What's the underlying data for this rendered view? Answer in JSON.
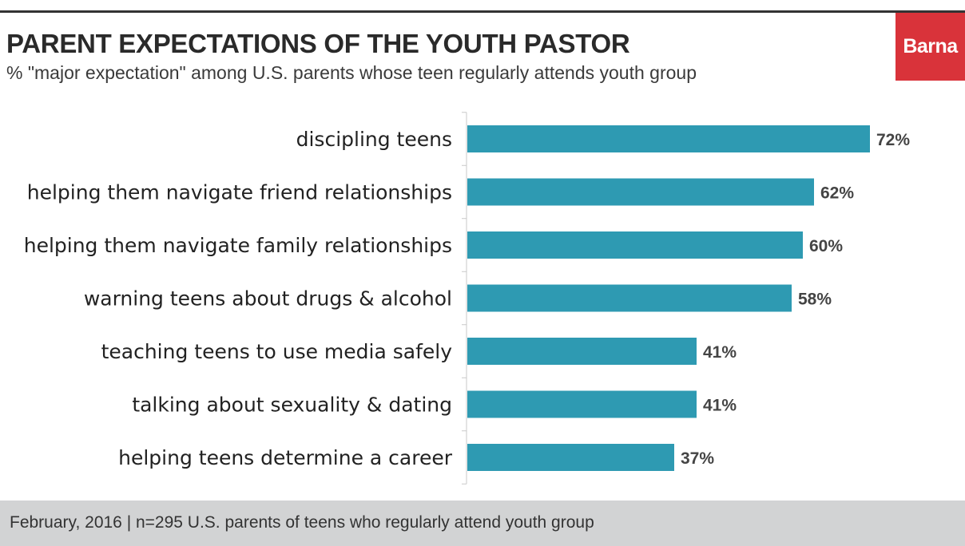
{
  "header": {
    "title": "PARENT EXPECTATIONS OF THE YOUTH PASTOR",
    "subtitle": "% \"major expectation\" among U.S. parents whose teen regularly attends youth group",
    "brand": "Barna"
  },
  "footer": {
    "note": "February, 2016 | n=295 U.S. parents of teens who regularly attend youth group"
  },
  "colors": {
    "bar": "#2e9ab2",
    "brand": "#d9333a",
    "footer_bg": "#d2d3d4"
  },
  "chart_data": {
    "type": "bar",
    "orientation": "horizontal",
    "title": "PARENT EXPECTATIONS OF THE YOUTH PASTOR",
    "subtitle": "% \"major expectation\" among U.S. parents whose teen regularly attends youth group",
    "xlabel": "",
    "ylabel": "",
    "categories": [
      "discipling teens",
      "helping them navigate friend relationships",
      "helping them navigate family relationships",
      "warning teens about drugs & alcohol",
      "teaching teens to use media safely",
      "talking about sexuality & dating",
      "helping teens determine a career"
    ],
    "values": [
      72,
      62,
      60,
      58,
      41,
      41,
      37
    ],
    "value_labels": [
      "72%",
      "62%",
      "60%",
      "58%",
      "41%",
      "41%",
      "37%"
    ],
    "unit": "%",
    "xlim": [
      0,
      100
    ],
    "grid": false,
    "legend": "none"
  }
}
